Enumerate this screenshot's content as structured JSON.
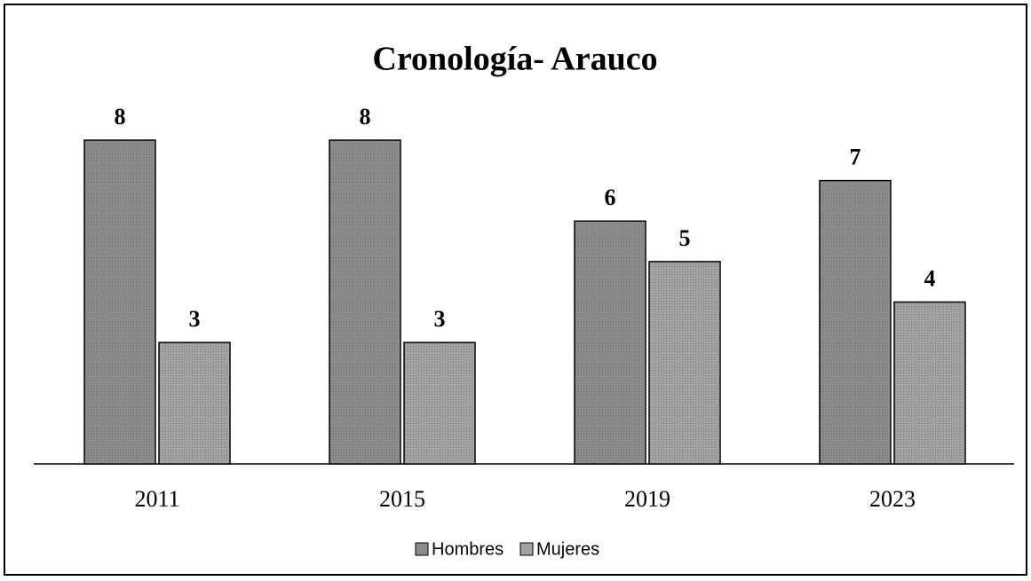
{
  "chart_data": {
    "type": "bar",
    "title": "Cronología- Arauco",
    "categories": [
      "2011",
      "2015",
      "2019",
      "2023"
    ],
    "series": [
      {
        "name": "Hombres",
        "color": "#8c8c8c",
        "values": [
          8,
          8,
          6,
          7
        ]
      },
      {
        "name": "Mujeres",
        "color": "#a3a3a3",
        "values": [
          3,
          3,
          5,
          4
        ]
      }
    ]
  }
}
